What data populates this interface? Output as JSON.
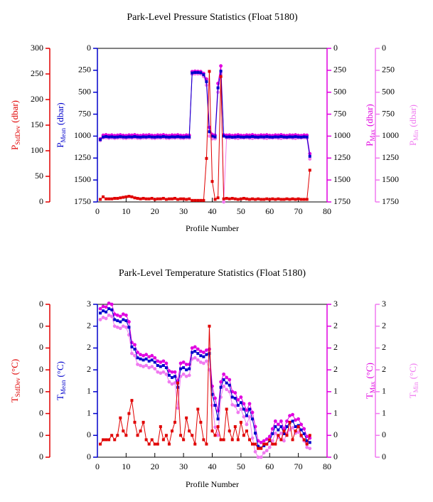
{
  "chart_data": [
    {
      "type": "line",
      "title": "Park-Level Pressure Statistics (Float 5180)",
      "x_label": "Profile Number",
      "xlim": [
        0,
        80
      ],
      "xticks": [
        0,
        10,
        20,
        30,
        40,
        50,
        60,
        70,
        80
      ],
      "x": [
        1,
        2,
        3,
        4,
        5,
        6,
        7,
        8,
        9,
        10,
        11,
        12,
        13,
        14,
        15,
        16,
        17,
        18,
        19,
        20,
        21,
        22,
        23,
        24,
        25,
        26,
        27,
        28,
        29,
        30,
        31,
        32,
        33,
        34,
        35,
        36,
        37,
        38,
        39,
        40,
        41,
        42,
        43,
        44,
        45,
        46,
        47,
        48,
        49,
        50,
        51,
        52,
        53,
        54,
        55,
        56,
        57,
        58,
        59,
        60,
        61,
        62,
        63,
        64,
        65,
        66,
        67,
        68,
        69,
        70,
        71,
        72,
        73,
        74
      ],
      "series": [
        {
          "label": {
            "main": "P",
            "sub": "StdDev",
            "unit": "(dbar)"
          },
          "color": "#e00000",
          "marker": "square",
          "ylim": [
            0,
            300
          ],
          "yticks": [
            0,
            50,
            100,
            150,
            200,
            250,
            300
          ],
          "values": [
            5,
            10,
            6,
            6,
            6,
            7,
            7,
            8,
            9,
            10,
            11,
            10,
            8,
            7,
            6,
            7,
            6,
            6,
            7,
            5,
            6,
            6,
            7,
            5,
            6,
            6,
            7,
            5,
            6,
            6,
            5,
            6,
            3,
            3,
            3,
            3,
            3,
            85,
            255,
            40,
            5,
            8,
            245,
            6,
            7,
            6,
            7,
            6,
            5,
            6,
            7,
            6,
            5,
            6,
            5,
            6,
            5,
            5,
            6,
            5,
            6,
            5,
            6,
            5,
            5,
            6,
            5,
            6,
            5,
            6,
            5,
            5,
            5,
            62
          ]
        },
        {
          "label": {
            "main": "P",
            "sub": "Mean",
            "unit": "(dbar)"
          },
          "color": "#0000cc",
          "marker": "square",
          "ylim": [
            1750,
            0
          ],
          "yticks": [
            0,
            250,
            500,
            750,
            1000,
            1250,
            1500,
            1750
          ],
          "values": [
            1040,
            1010,
            1005,
            1010,
            1008,
            1012,
            1010,
            1006,
            1010,
            1012,
            1008,
            1010,
            1005,
            1010,
            1012,
            1008,
            1010,
            1006,
            1010,
            1012,
            1008,
            1010,
            1005,
            1010,
            1012,
            1008,
            1010,
            1006,
            1010,
            1012,
            1008,
            1010,
            280,
            275,
            275,
            278,
            300,
            380,
            950,
            1000,
            1010,
            450,
            260,
            1000,
            1010,
            1008,
            1012,
            1010,
            1006,
            1010,
            1012,
            1008,
            1010,
            1005,
            1010,
            1012,
            1008,
            1010,
            1006,
            1010,
            1012,
            1008,
            1010,
            1005,
            1010,
            1012,
            1008,
            1010,
            1006,
            1010,
            1012,
            1008,
            1010,
            1230
          ]
        },
        {
          "label": {
            "main": "P",
            "sub": "Max",
            "unit": "(dbar)"
          },
          "color": "#e000e0",
          "marker": "circle",
          "ylim": [
            1750,
            0
          ],
          "yticks": [
            0,
            250,
            500,
            750,
            1000,
            1250,
            1500,
            1750
          ],
          "values": [
            1030,
            990,
            985,
            992,
            988,
            994,
            990,
            986,
            992,
            994,
            988,
            990,
            985,
            992,
            994,
            988,
            990,
            986,
            992,
            994,
            988,
            990,
            985,
            992,
            994,
            988,
            990,
            986,
            992,
            994,
            988,
            990,
            265,
            260,
            262,
            265,
            285,
            350,
            900,
            980,
            990,
            400,
            200,
            985,
            990,
            988,
            994,
            990,
            986,
            992,
            994,
            988,
            990,
            985,
            992,
            994,
            988,
            990,
            986,
            992,
            994,
            988,
            990,
            985,
            992,
            994,
            988,
            990,
            986,
            992,
            994,
            988,
            990,
            1200
          ]
        },
        {
          "label": {
            "main": "P",
            "sub": "Min",
            "unit": "(dbar)"
          },
          "color": "#f07af0",
          "marker": "circle",
          "ylim": [
            1750,
            0
          ],
          "yticks": [
            0,
            250,
            500,
            750,
            1000,
            1250,
            1500,
            1750
          ],
          "values": [
            1050,
            1020,
            1018,
            1024,
            1020,
            1026,
            1022,
            1018,
            1024,
            1026,
            1020,
            1022,
            1018,
            1024,
            1026,
            1020,
            1022,
            1018,
            1024,
            1026,
            1020,
            1022,
            1018,
            1024,
            1026,
            1020,
            1022,
            1018,
            1024,
            1026,
            1020,
            1022,
            295,
            290,
            290,
            292,
            320,
            420,
            1000,
            1030,
            1030,
            500,
            290,
            1750,
            1020,
            1022,
            1018,
            1024,
            1026,
            1020,
            1022,
            1018,
            1024,
            1026,
            1020,
            1022,
            1018,
            1024,
            1026,
            1020,
            1022,
            1018,
            1024,
            1026,
            1020,
            1022,
            1018,
            1024,
            1026,
            1020,
            1022,
            1018,
            1024,
            1260
          ]
        }
      ]
    },
    {
      "type": "line",
      "title": "Park-Level Temperature Statistics (Float 5180)",
      "x_label": "Profile Number",
      "xlim": [
        0,
        80
      ],
      "xticks": [
        0,
        10,
        20,
        30,
        40,
        50,
        60,
        70,
        80
      ],
      "x": [
        1,
        2,
        3,
        4,
        5,
        6,
        7,
        8,
        9,
        10,
        11,
        12,
        13,
        14,
        15,
        16,
        17,
        18,
        19,
        20,
        21,
        22,
        23,
        24,
        25,
        26,
        27,
        28,
        29,
        30,
        31,
        32,
        33,
        34,
        35,
        36,
        37,
        38,
        39,
        40,
        41,
        42,
        43,
        44,
        45,
        46,
        47,
        48,
        49,
        50,
        51,
        52,
        53,
        54,
        55,
        56,
        57,
        58,
        59,
        60,
        61,
        62,
        63,
        64,
        65,
        66,
        67,
        68,
        69,
        70,
        71,
        72,
        73,
        74
      ],
      "series": [
        {
          "label": {
            "main": "T",
            "sub": "StdDev",
            "unit": "(°C)"
          },
          "color": "#e00000",
          "marker": "square",
          "ylim": [
            0,
            0.35
          ],
          "yticks": [
            0,
            {
              "value": 0.05,
              "label": "0"
            },
            {
              "value": 0.1,
              "label": "0"
            },
            {
              "value": 0.15,
              "label": "0"
            },
            {
              "value": 0.2,
              "label": "0"
            },
            {
              "value": 0.25,
              "label": "0"
            },
            {
              "value": 0.3,
              "label": "0"
            },
            {
              "value": 0.35,
              "label": "0"
            }
          ],
          "values": [
            0.03,
            0.04,
            0.04,
            0.04,
            0.05,
            0.04,
            0.05,
            0.09,
            0.06,
            0.05,
            0.1,
            0.13,
            0.08,
            0.05,
            0.06,
            0.08,
            0.04,
            0.03,
            0.04,
            0.03,
            0.03,
            0.07,
            0.04,
            0.05,
            0.03,
            0.06,
            0.08,
            0.17,
            0.05,
            0.04,
            0.09,
            0.06,
            0.05,
            0.03,
            0.11,
            0.08,
            0.04,
            0.03,
            0.3,
            0.06,
            0.05,
            0.07,
            0.04,
            0.04,
            0.11,
            0.06,
            0.04,
            0.07,
            0.04,
            0.08,
            0.05,
            0.06,
            0.04,
            0.03,
            0.03,
            0.02,
            0.02,
            0.03,
            0.03,
            0.04,
            0.03,
            0.03,
            0.05,
            0.04,
            0.06,
            0.05,
            0.08,
            0.04,
            0.06,
            0.07,
            0.05,
            0.04,
            0.03,
            0.05
          ]
        },
        {
          "label": {
            "main": "T",
            "sub": "Mean",
            "unit": "(°C)"
          },
          "color": "#0000cc",
          "marker": "square",
          "ylim": [
            0,
            2.8
          ],
          "yticks": [
            0,
            {
              "value": 0.4,
              "label": "0"
            },
            {
              "value": 0.8,
              "label": "1"
            },
            {
              "value": 1.2,
              "label": "1"
            },
            {
              "value": 1.6,
              "label": "2"
            },
            2,
            {
              "value": 2.4,
              "label": "2"
            },
            {
              "value": 2.8,
              "label": "3"
            }
          ],
          "values": [
            2.64,
            2.68,
            2.66,
            2.72,
            2.7,
            2.52,
            2.5,
            2.48,
            2.52,
            2.5,
            2.38,
            2.02,
            1.98,
            1.82,
            1.8,
            1.78,
            1.8,
            1.76,
            1.78,
            1.74,
            1.68,
            1.66,
            1.68,
            1.64,
            1.5,
            1.46,
            1.48,
            1.28,
            1.62,
            1.64,
            1.6,
            1.62,
            1.92,
            1.94,
            1.9,
            1.86,
            1.84,
            1.88,
            1.9,
            1.15,
            0.95,
            0.7,
            1.28,
            1.42,
            1.36,
            1.32,
            1.1,
            1.08,
            0.95,
            1,
            0.88,
            0.76,
            0.88,
            0.7,
            0.44,
            0.2,
            0.17,
            0.21,
            0.24,
            0.3,
            0.43,
            0.56,
            0.5,
            0.56,
            0.43,
            0.56,
            0.63,
            0.66,
            0.56,
            0.58,
            0.5,
            0.43,
            0.3,
            0.27
          ]
        },
        {
          "label": {
            "main": "T",
            "sub": "Max",
            "unit": "(°C)"
          },
          "color": "#e000e0",
          "marker": "circle",
          "ylim": [
            0,
            2.8
          ],
          "yticks": [
            0,
            {
              "value": 0.4,
              "label": "0"
            },
            {
              "value": 0.8,
              "label": "1"
            },
            {
              "value": 1.2,
              "label": "1"
            },
            {
              "value": 1.6,
              "label": "2"
            },
            2,
            {
              "value": 2.4,
              "label": "2"
            },
            {
              "value": 2.8,
              "label": "3"
            }
          ],
          "values": [
            2.72,
            2.76,
            2.75,
            2.82,
            2.8,
            2.62,
            2.6,
            2.58,
            2.62,
            2.6,
            2.48,
            2.1,
            2.06,
            1.92,
            1.88,
            1.86,
            1.88,
            1.84,
            1.86,
            1.82,
            1.76,
            1.74,
            1.76,
            1.72,
            1.58,
            1.56,
            1.56,
            1.4,
            1.72,
            1.74,
            1.7,
            1.7,
            2,
            2.02,
            1.98,
            1.94,
            1.92,
            1.96,
            1.98,
            1.3,
            1.08,
            0.85,
            1.38,
            1.52,
            1.46,
            1.42,
            1.2,
            1.18,
            1.05,
            1.1,
            0.98,
            0.86,
            0.98,
            0.82,
            0.56,
            0.3,
            0.27,
            0.3,
            0.33,
            0.38,
            0.52,
            0.66,
            0.6,
            0.66,
            0.52,
            0.66,
            0.76,
            0.78,
            0.68,
            0.7,
            0.6,
            0.52,
            0.38,
            0.35
          ]
        },
        {
          "label": {
            "main": "T",
            "sub": "Min",
            "unit": "(°C)"
          },
          "color": "#f07af0",
          "marker": "circle",
          "ylim": [
            0,
            2.8
          ],
          "yticks": [
            0,
            {
              "value": 0.4,
              "label": "0"
            },
            {
              "value": 0.8,
              "label": "1"
            },
            {
              "value": 1.2,
              "label": "1"
            },
            {
              "value": 1.6,
              "label": "2"
            },
            2,
            {
              "value": 2.4,
              "label": "2"
            },
            {
              "value": 2.8,
              "label": "3"
            }
          ],
          "values": [
            2.52,
            2.56,
            2.54,
            2.6,
            2.58,
            2.4,
            2.38,
            2.36,
            2.4,
            2.38,
            2.24,
            1.9,
            1.86,
            1.7,
            1.68,
            1.66,
            1.68,
            1.64,
            1.66,
            1.62,
            1.56,
            1.54,
            1.56,
            1.52,
            1.38,
            1.34,
            1.36,
            0.9,
            1.48,
            1.52,
            1.48,
            1.5,
            1.8,
            1.82,
            1.78,
            1.74,
            1.72,
            1.76,
            1.6,
            0.95,
            0.55,
            0.4,
            1.1,
            1.3,
            1.24,
            1.2,
            0.96,
            0.94,
            0.82,
            0.88,
            0.74,
            0.6,
            0.74,
            0.35,
            0.1,
            0,
            0,
            0.08,
            0.12,
            0.18,
            0.3,
            0.44,
            0.36,
            0.44,
            0.3,
            0.44,
            0.5,
            0.54,
            0.44,
            0.46,
            0.38,
            0.3,
            0.18,
            0.16
          ]
        }
      ]
    }
  ]
}
